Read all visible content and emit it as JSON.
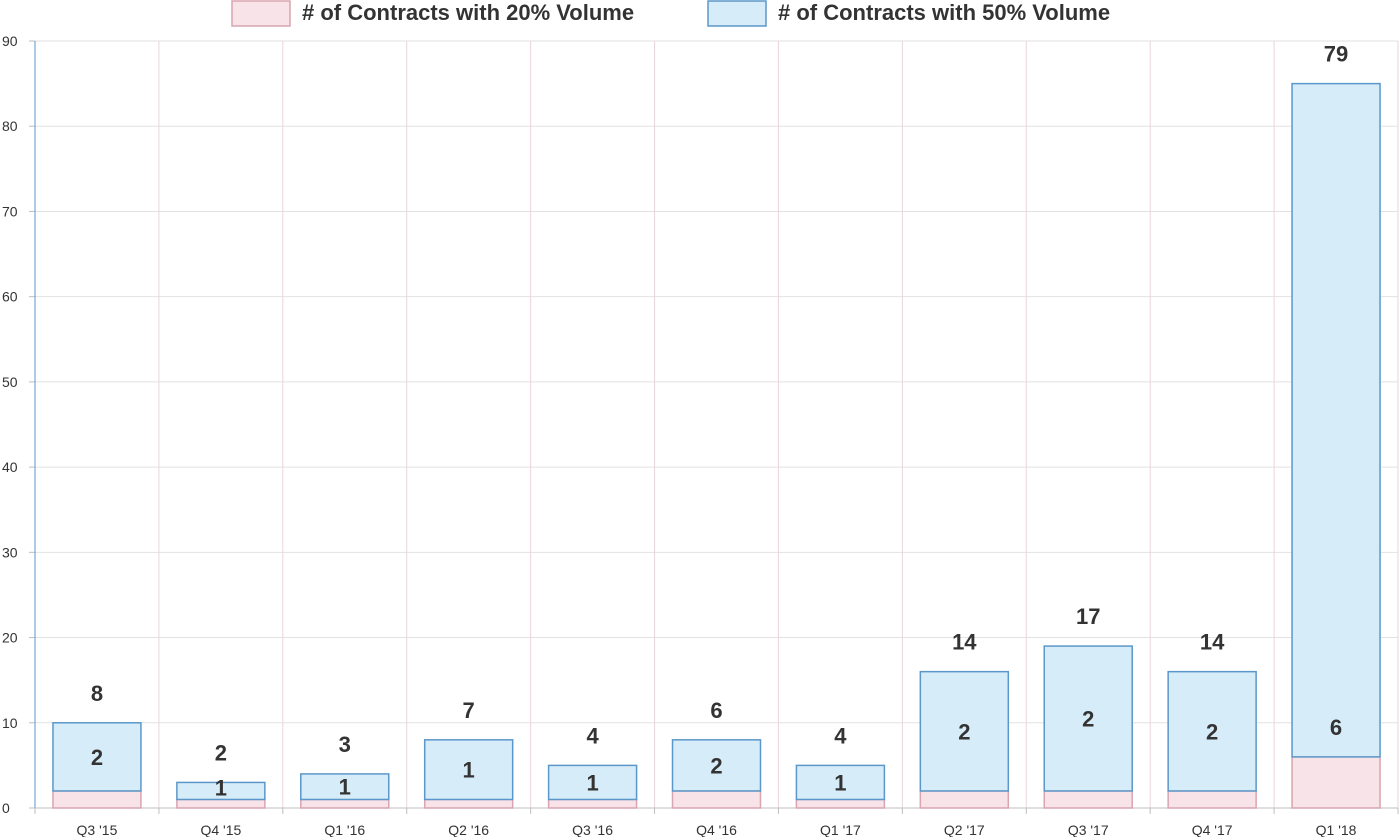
{
  "colors": {
    "series_1_fill": "#f8e3e8",
    "series_1_stroke": "#d9a5b0",
    "series_2_fill": "#d6ecf8",
    "series_2_stroke": "#5b97c9",
    "grid_vertical": "#ead5dc",
    "grid_horizontal": "#e2e2e2",
    "axis": "#bfbfbf",
    "text": "#333333"
  },
  "chart_data": {
    "type": "bar",
    "stacked": true,
    "title": "",
    "xlabel": "",
    "ylabel": "",
    "ylim": [
      0,
      90
    ],
    "y_ticks": [
      0,
      10,
      20,
      30,
      40,
      50,
      60,
      70,
      80,
      90
    ],
    "grid": true,
    "legend_position": "top-center",
    "categories": [
      "Q3 '15",
      "Q4 '15",
      "Q1 '16",
      "Q2 '16",
      "Q3 '16",
      "Q4 '16",
      "Q1 '17",
      "Q2 '17",
      "Q3 '17",
      "Q4 '17",
      "Q1 '18"
    ],
    "series": [
      {
        "name": "# of Contracts with 20% Volume",
        "values": [
          2,
          1,
          1,
          1,
          1,
          2,
          1,
          2,
          2,
          2,
          6
        ]
      },
      {
        "name": "# of Contracts with 50% Volume",
        "values": [
          8,
          2,
          3,
          7,
          4,
          6,
          4,
          14,
          17,
          14,
          79
        ]
      }
    ]
  }
}
